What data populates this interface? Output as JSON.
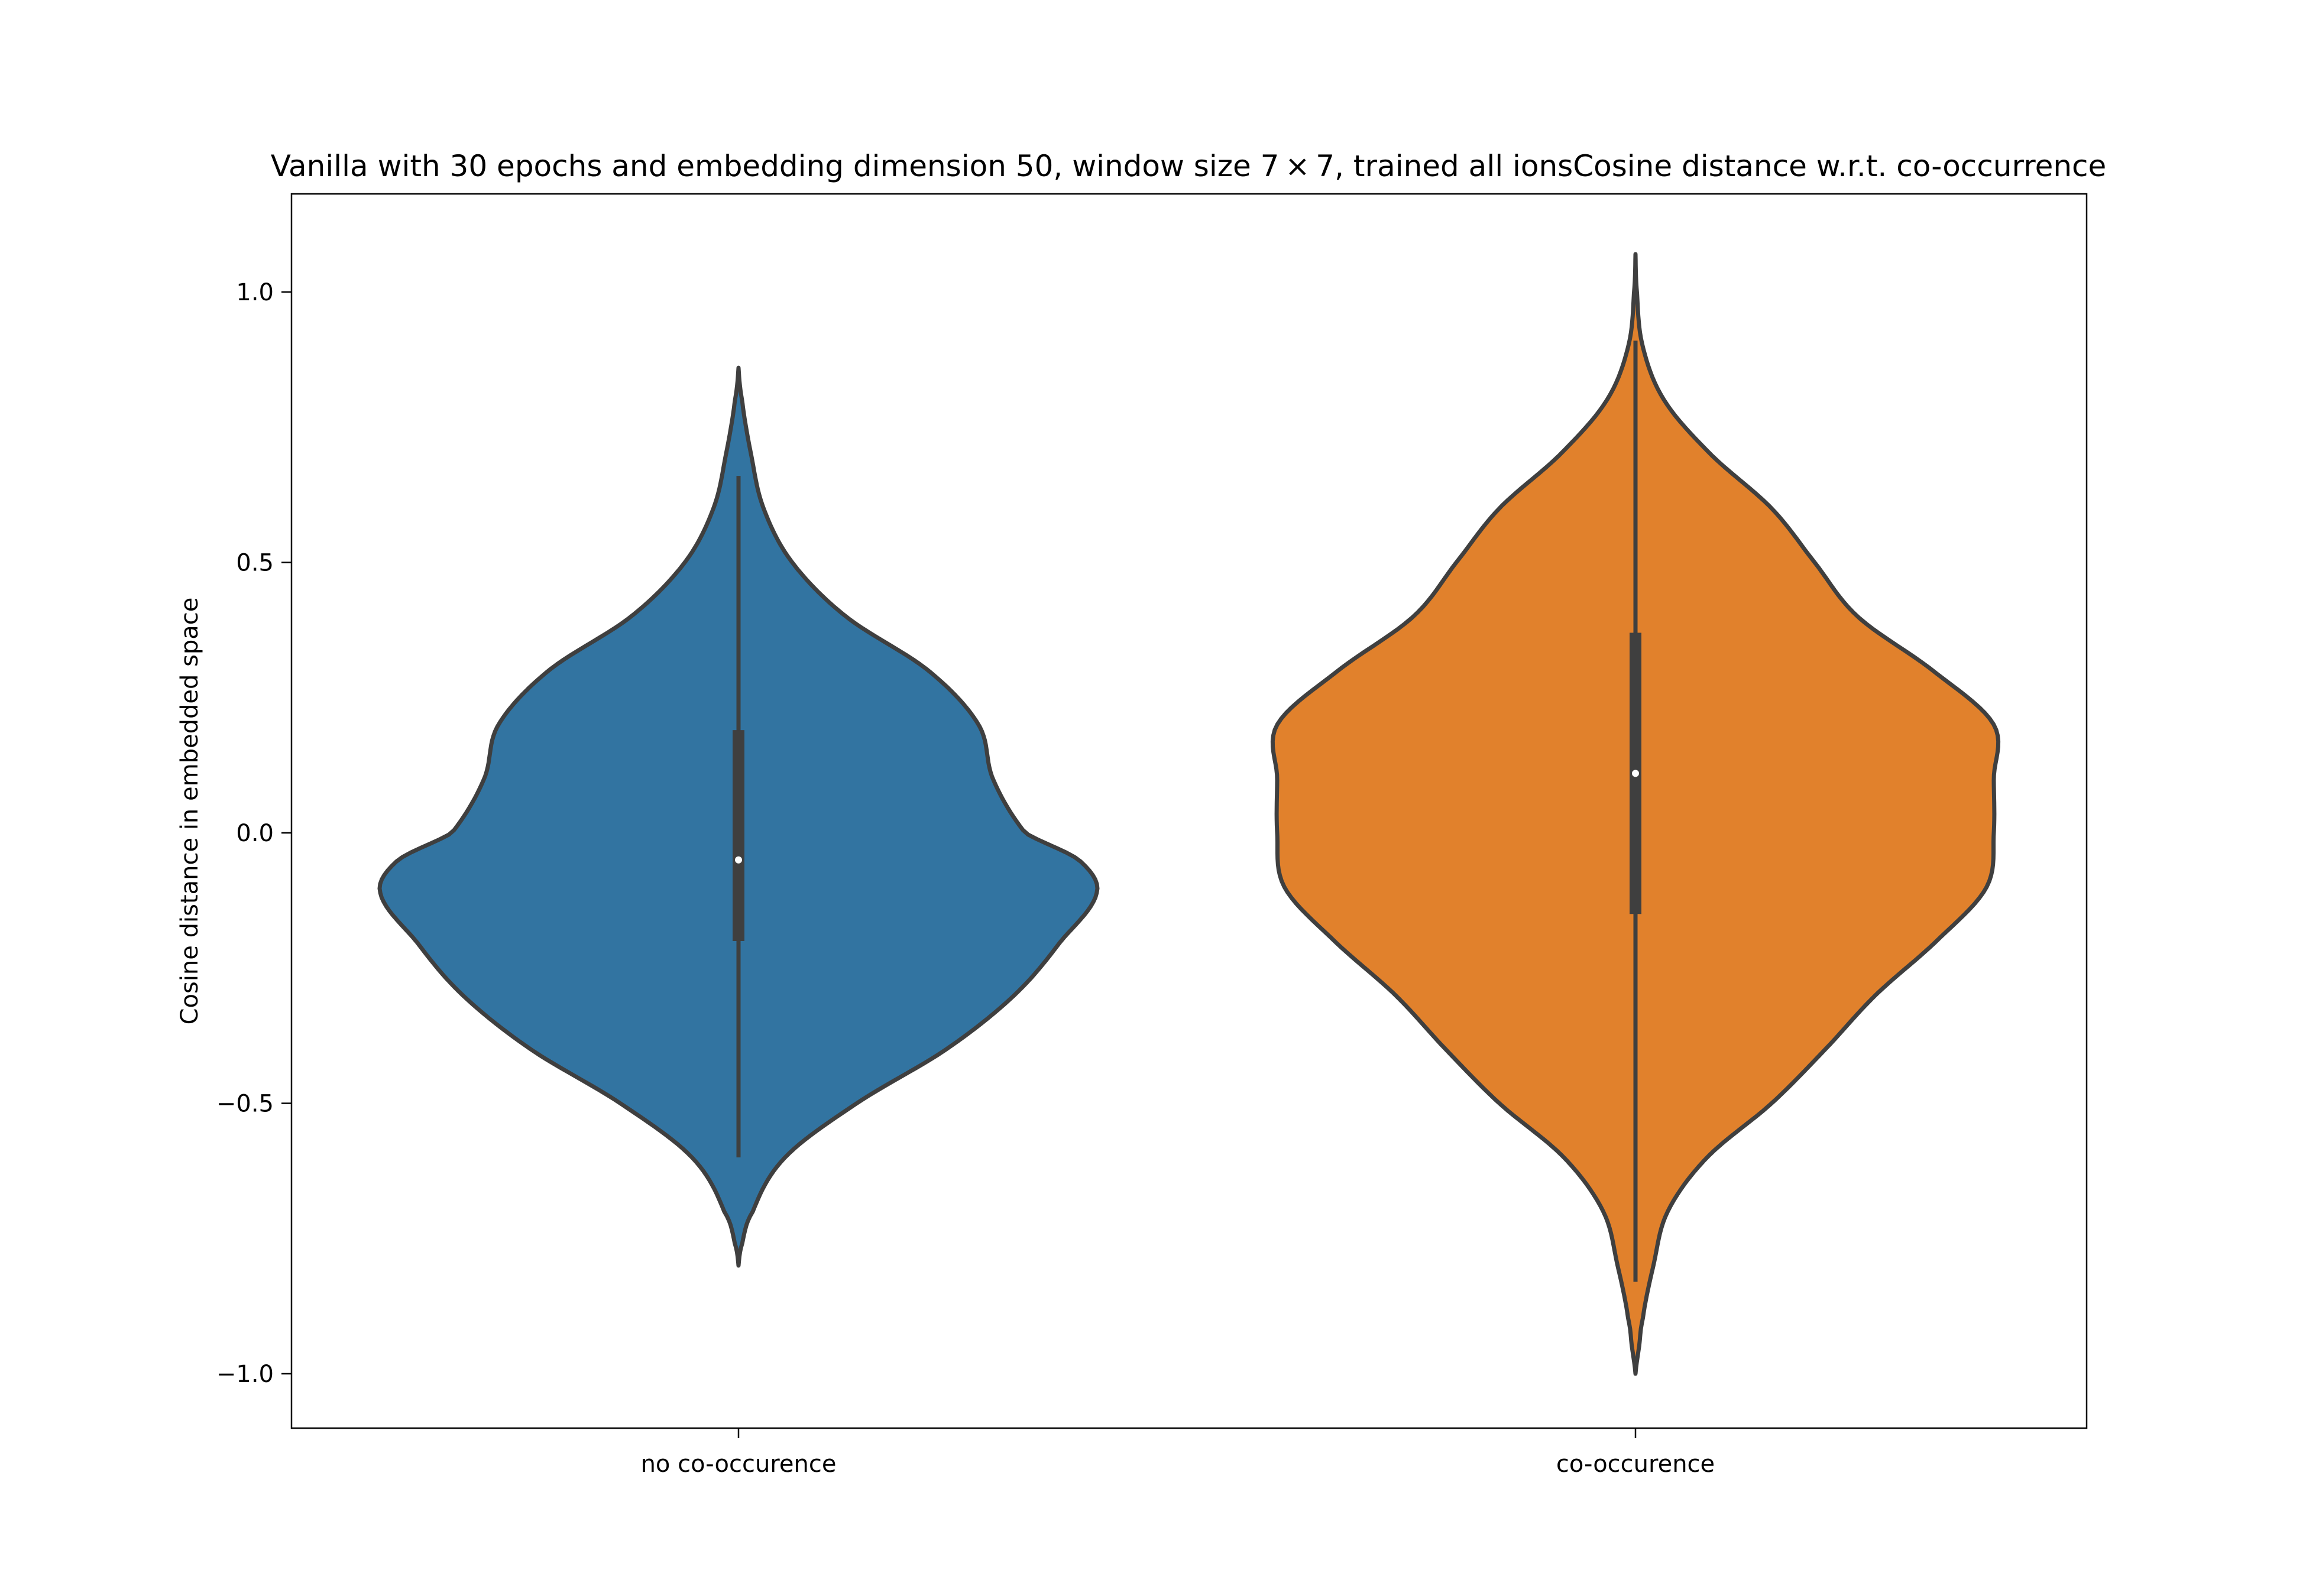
{
  "chart_data": {
    "type": "violin",
    "title": "Vanilla with 30 epochs and embedding dimension 50, window size 7 × 7, trained all ionsCosine distance w.r.t. co-occurrence",
    "xlabel": "",
    "ylabel": "Cosine distance in embedded space",
    "ylim": [
      -1.1,
      1.18
    ],
    "yticks": [
      1.0,
      0.5,
      0.0,
      -0.5,
      -1.0
    ],
    "ytick_labels": [
      "1.0",
      "0.5",
      "0.0",
      "−0.5",
      "−1.0"
    ],
    "categories": [
      "no co-occurence",
      "co-occurence"
    ],
    "grid": false,
    "legend": "none",
    "series": [
      {
        "category": "no co-occurence",
        "color": "#3274a1",
        "min": -0.6,
        "q1": -0.2,
        "median": -0.05,
        "q3": 0.19,
        "max": 0.66,
        "kde_extent": [
          -0.8,
          0.86
        ],
        "density_profile": [
          [
            -0.8,
            0.0
          ],
          [
            -0.76,
            0.01
          ],
          [
            -0.7,
            0.04
          ],
          [
            -0.6,
            0.13
          ],
          [
            -0.5,
            0.33
          ],
          [
            -0.4,
            0.58
          ],
          [
            -0.3,
            0.77
          ],
          [
            -0.2,
            0.9
          ],
          [
            -0.11,
            1.0
          ],
          [
            -0.05,
            0.95
          ],
          [
            0.0,
            0.8
          ],
          [
            0.1,
            0.71
          ],
          [
            0.2,
            0.67
          ],
          [
            0.3,
            0.53
          ],
          [
            0.4,
            0.3
          ],
          [
            0.5,
            0.15
          ],
          [
            0.6,
            0.07
          ],
          [
            0.7,
            0.035
          ],
          [
            0.8,
            0.01
          ],
          [
            0.86,
            0.0
          ]
        ]
      },
      {
        "category": "co-occurence",
        "color": "#e1812c",
        "min": -0.83,
        "q1": -0.15,
        "median": 0.11,
        "q3": 0.37,
        "max": 0.91,
        "kde_extent": [
          -1.0,
          1.07
        ],
        "density_profile": [
          [
            -1.0,
            0.0
          ],
          [
            -0.95,
            0.01
          ],
          [
            -0.9,
            0.02
          ],
          [
            -0.8,
            0.05
          ],
          [
            -0.7,
            0.09
          ],
          [
            -0.6,
            0.2
          ],
          [
            -0.5,
            0.38
          ],
          [
            -0.4,
            0.53
          ],
          [
            -0.3,
            0.67
          ],
          [
            -0.2,
            0.84
          ],
          [
            -0.1,
            0.98
          ],
          [
            0.0,
            1.0
          ],
          [
            0.1,
            1.0
          ],
          [
            0.2,
            1.0
          ],
          [
            0.3,
            0.83
          ],
          [
            0.4,
            0.62
          ],
          [
            0.5,
            0.5
          ],
          [
            0.6,
            0.38
          ],
          [
            0.7,
            0.21
          ],
          [
            0.8,
            0.08
          ],
          [
            0.9,
            0.02
          ],
          [
            1.0,
            0.004
          ],
          [
            1.07,
            0.0
          ]
        ]
      }
    ]
  }
}
